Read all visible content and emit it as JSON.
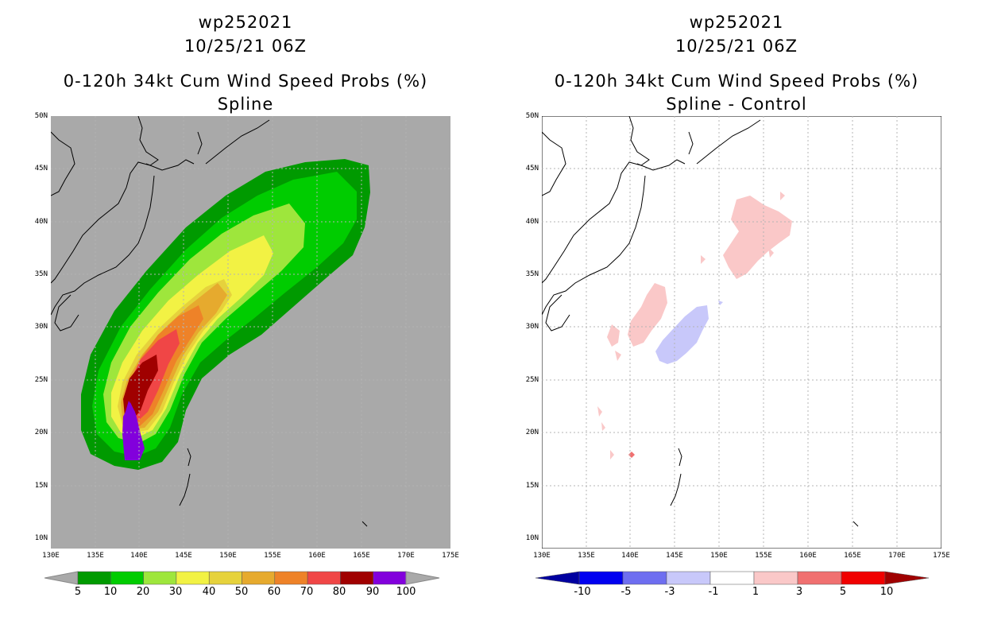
{
  "left": {
    "title_line1": "wp252021",
    "title_line2": "10/25/21 06Z",
    "title_line3": "0-120h 34kt Cum Wind Speed Probs (%)",
    "title_line4": "Spline",
    "colorbar": {
      "labels": [
        "5",
        "10",
        "20",
        "30",
        "40",
        "50",
        "60",
        "70",
        "80",
        "90",
        "100"
      ],
      "colors": [
        "#009a00",
        "#00cc00",
        "#9ee63c",
        "#f2f244",
        "#e6d23c",
        "#e6aa2e",
        "#ee8228",
        "#f04646",
        "#a00000",
        "#8200dc"
      ]
    }
  },
  "right": {
    "title_line1": "wp252021",
    "title_line2": "10/25/21 06Z",
    "title_line3": "0-120h 34kt Cum Wind Speed Probs (%)",
    "title_line4": "Spline - Control",
    "colorbar": {
      "labels": [
        "-10",
        "-5",
        "-3",
        "-1",
        "1",
        "3",
        "5",
        "10"
      ],
      "colors": [
        "#0000a0",
        "#0000f0",
        "#6e6ef0",
        "#c8c8fa",
        "#ffffff",
        "#fac8c8",
        "#f07070",
        "#f00000",
        "#a00000"
      ]
    }
  },
  "axes": {
    "lat_labels": [
      "50N",
      "45N",
      "40N",
      "35N",
      "30N",
      "25N",
      "20N",
      "15N",
      "10N"
    ],
    "lon_labels": [
      "130E",
      "135E",
      "140E",
      "145E",
      "150E",
      "155E",
      "160E",
      "165E",
      "170E",
      "175E"
    ]
  },
  "colors": {
    "land_background": "#a9a9a9",
    "grid": "#b4b4b4",
    "coast": "#000000"
  }
}
